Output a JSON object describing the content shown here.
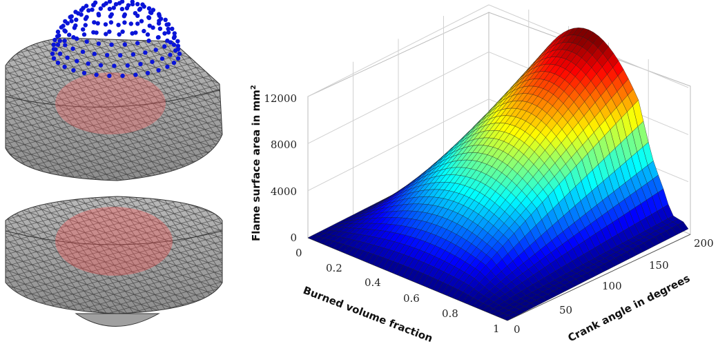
{
  "left_panel": {
    "description_icon": "mesh-render"
  },
  "chart_data": {
    "type": "surface",
    "zlabel_main": "Flame surface area in mm",
    "zlabel_sup": "2",
    "xlabel": "Burned volume fraction",
    "ylabel": "Crank angle in degrees",
    "xticks": [
      "0",
      "0.2",
      "0.4",
      "0.6",
      "0.8",
      "1"
    ],
    "yticks": [
      "0",
      "50",
      "100",
      "150",
      "200"
    ],
    "zticks": [
      "0",
      "4000",
      "8000",
      "12000"
    ],
    "xlim": [
      0,
      1
    ],
    "ylim": [
      0,
      200
    ],
    "zlim": [
      0,
      12000
    ],
    "peak": {
      "x": 0.5,
      "y": 200,
      "z": 12900
    },
    "colormap": "jet",
    "grid": true
  }
}
